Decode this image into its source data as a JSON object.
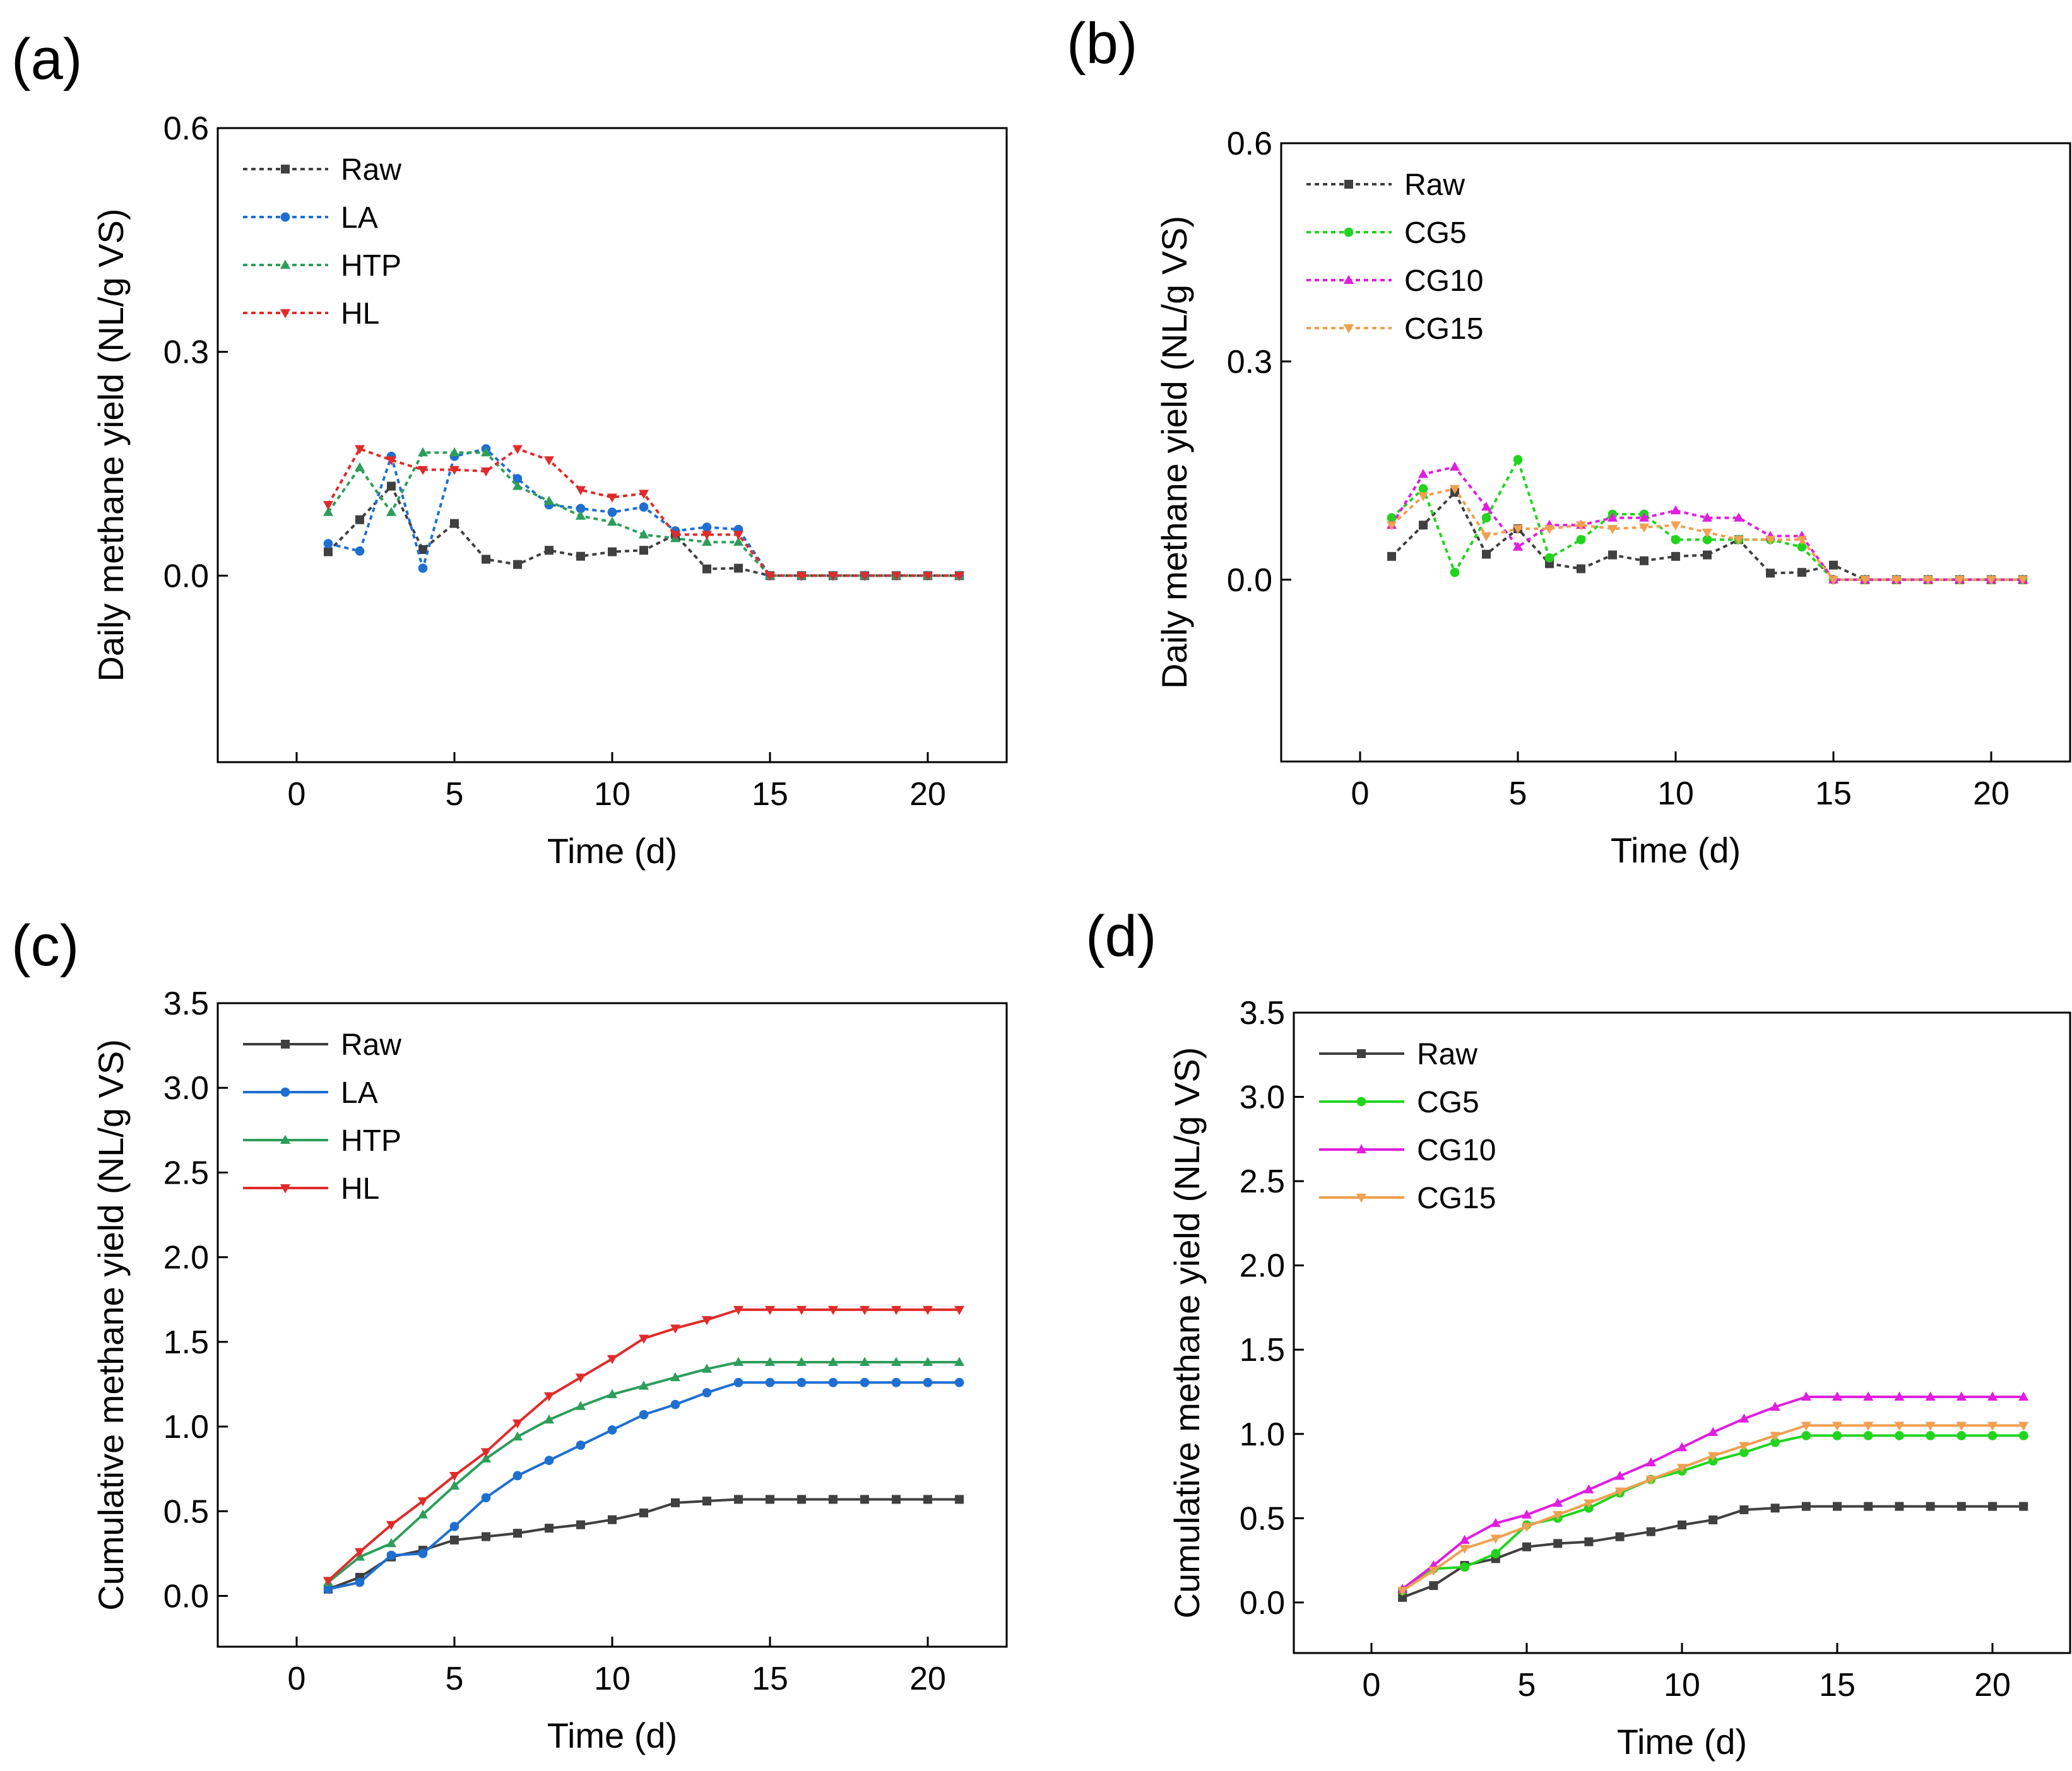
{
  "figure": {
    "panels": [
      "(a)",
      "(b)",
      "(c)",
      "(d)"
    ]
  },
  "chart_data": [
    {
      "panel": "(a)",
      "type": "line",
      "title": "",
      "xlabel": "Time (d)",
      "ylabel": "Daily methane yield (NL/g VS)",
      "xlim": [
        -2.5,
        22.5
      ],
      "ylim": [
        -0.25,
        0.6
      ],
      "xticks": [
        0,
        5,
        10,
        15,
        20
      ],
      "xtick_labels": [
        "0",
        "5",
        "10",
        "15",
        "20"
      ],
      "yticks": [
        0.0,
        0.3,
        0.6
      ],
      "ytick_labels": [
        "0.0",
        "0.3",
        "0.6"
      ],
      "legend_position": "top-left",
      "line_style": "dotted",
      "x": [
        1,
        2,
        3,
        4,
        5,
        6,
        7,
        8,
        9,
        10,
        11,
        12,
        13,
        14,
        15,
        16,
        17,
        18,
        19,
        20,
        21
      ],
      "series": [
        {
          "name": "Raw",
          "color": "#404040",
          "marker": "square",
          "values": [
            0.032,
            0.075,
            0.12,
            0.035,
            0.07,
            0.022,
            0.015,
            0.034,
            0.026,
            0.032,
            0.034,
            0.055,
            0.009,
            0.01,
            0,
            0,
            0,
            0,
            0,
            0,
            0
          ]
        },
        {
          "name": "LA",
          "color": "#1f6fd1",
          "marker": "circle",
          "values": [
            0.043,
            0.033,
            0.16,
            0.01,
            0.16,
            0.17,
            0.13,
            0.095,
            0.09,
            0.085,
            0.092,
            0.06,
            0.065,
            0.062,
            0,
            0,
            0,
            0,
            0,
            0,
            0
          ]
        },
        {
          "name": "HTP",
          "color": "#2e9e5b",
          "marker": "triangle-up",
          "values": [
            0.085,
            0.145,
            0.085,
            0.165,
            0.165,
            0.165,
            0.12,
            0.1,
            0.08,
            0.072,
            0.055,
            0.05,
            0.045,
            0.045,
            0,
            0,
            0,
            0,
            0,
            0,
            0
          ]
        },
        {
          "name": "HL",
          "color": "#e02b2b",
          "marker": "triangle-down",
          "values": [
            0.095,
            0.17,
            0.155,
            0.142,
            0.142,
            0.14,
            0.17,
            0.155,
            0.115,
            0.105,
            0.11,
            0.055,
            0.055,
            0.055,
            0,
            0,
            0,
            0,
            0,
            0,
            0
          ]
        }
      ]
    },
    {
      "panel": "(b)",
      "type": "line",
      "title": "",
      "xlabel": "Time (d)",
      "ylabel": "Daily methane yield (NL/g VS)",
      "xlim": [
        -2.5,
        22.5
      ],
      "ylim": [
        -0.25,
        0.6
      ],
      "xticks": [
        0,
        5,
        10,
        15,
        20
      ],
      "xtick_labels": [
        "0",
        "5",
        "10",
        "15",
        "20"
      ],
      "yticks": [
        0.0,
        0.3,
        0.6
      ],
      "ytick_labels": [
        "0.0",
        "0.3",
        "0.6"
      ],
      "legend_position": "top-left",
      "line_style": "dotted",
      "x": [
        1,
        2,
        3,
        4,
        5,
        6,
        7,
        8,
        9,
        10,
        11,
        12,
        13,
        14,
        15,
        16,
        17,
        18,
        19,
        20,
        21
      ],
      "series": [
        {
          "name": "Raw",
          "color": "#404040",
          "marker": "square",
          "values": [
            0.032,
            0.075,
            0.12,
            0.035,
            0.07,
            0.022,
            0.015,
            0.034,
            0.026,
            0.032,
            0.034,
            0.055,
            0.009,
            0.01,
            0.02,
            0,
            0,
            0,
            0,
            0,
            0
          ]
        },
        {
          "name": "CG5",
          "color": "#22d41e",
          "marker": "circle",
          "values": [
            0.085,
            0.125,
            0.01,
            0.085,
            0.165,
            0.03,
            0.055,
            0.09,
            0.09,
            0.055,
            0.055,
            0.055,
            0.055,
            0.045,
            0,
            0,
            0,
            0,
            0,
            0,
            0
          ]
        },
        {
          "name": "CG10",
          "color": "#e01ee0",
          "marker": "triangle-up",
          "values": [
            0.075,
            0.145,
            0.155,
            0.1,
            0.045,
            0.075,
            0.075,
            0.085,
            0.085,
            0.095,
            0.085,
            0.085,
            0.06,
            0.06,
            0,
            0,
            0,
            0,
            0,
            0,
            0
          ]
        },
        {
          "name": "CG15",
          "color": "#f0a050",
          "marker": "triangle-down",
          "values": [
            0.075,
            0.115,
            0.125,
            0.06,
            0.07,
            0.07,
            0.075,
            0.07,
            0.072,
            0.075,
            0.065,
            0.055,
            0.055,
            0.055,
            0,
            0,
            0,
            0,
            0,
            0,
            0
          ]
        }
      ]
    },
    {
      "panel": "(c)",
      "type": "line",
      "title": "",
      "xlabel": "Time (d)",
      "ylabel": "Cumulative methane yield (NL/g VS)",
      "xlim": [
        -2.5,
        22.5
      ],
      "ylim": [
        -0.3,
        3.5
      ],
      "xticks": [
        0,
        5,
        10,
        15,
        20
      ],
      "xtick_labels": [
        "0",
        "5",
        "10",
        "15",
        "20"
      ],
      "yticks": [
        0.0,
        0.5,
        1.0,
        1.5,
        2.0,
        2.5,
        3.0,
        3.5
      ],
      "ytick_labels": [
        "0.0",
        "0.5",
        "1.0",
        "1.5",
        "2.0",
        "2.5",
        "3.0",
        "3.5"
      ],
      "legend_position": "top-left",
      "line_style": "solid",
      "x": [
        1,
        2,
        3,
        4,
        5,
        6,
        7,
        8,
        9,
        10,
        11,
        12,
        13,
        14,
        15,
        16,
        17,
        18,
        19,
        20,
        21
      ],
      "series": [
        {
          "name": "Raw",
          "color": "#404040",
          "marker": "square",
          "values": [
            0.04,
            0.11,
            0.23,
            0.27,
            0.33,
            0.35,
            0.37,
            0.4,
            0.42,
            0.45,
            0.49,
            0.55,
            0.56,
            0.57,
            0.57,
            0.57,
            0.57,
            0.57,
            0.57,
            0.57,
            0.57
          ]
        },
        {
          "name": "LA",
          "color": "#1f6fd1",
          "marker": "circle",
          "values": [
            0.04,
            0.08,
            0.24,
            0.25,
            0.41,
            0.58,
            0.71,
            0.8,
            0.89,
            0.98,
            1.07,
            1.13,
            1.2,
            1.26,
            1.26,
            1.26,
            1.26,
            1.26,
            1.26,
            1.26,
            1.26
          ]
        },
        {
          "name": "HTP",
          "color": "#2e9e5b",
          "marker": "triangle-up",
          "values": [
            0.08,
            0.23,
            0.31,
            0.48,
            0.65,
            0.81,
            0.94,
            1.04,
            1.12,
            1.19,
            1.24,
            1.29,
            1.34,
            1.38,
            1.38,
            1.38,
            1.38,
            1.38,
            1.38,
            1.38,
            1.38
          ]
        },
        {
          "name": "HL",
          "color": "#e02b2b",
          "marker": "triangle-down",
          "values": [
            0.09,
            0.26,
            0.42,
            0.56,
            0.71,
            0.85,
            1.02,
            1.18,
            1.29,
            1.4,
            1.52,
            1.58,
            1.63,
            1.69,
            1.69,
            1.69,
            1.69,
            1.69,
            1.69,
            1.69,
            1.69
          ]
        }
      ]
    },
    {
      "panel": "(d)",
      "type": "line",
      "title": "",
      "xlabel": "Time (d)",
      "ylabel": "Cumulative methane yield (NL/g VS)",
      "xlim": [
        -2.5,
        22.5
      ],
      "ylim": [
        -0.3,
        3.5
      ],
      "xticks": [
        0,
        5,
        10,
        15,
        20
      ],
      "xtick_labels": [
        "0",
        "5",
        "10",
        "15",
        "20"
      ],
      "yticks": [
        0.0,
        0.5,
        1.0,
        1.5,
        2.0,
        2.5,
        3.0,
        3.5
      ],
      "ytick_labels": [
        "0.0",
        "0.5",
        "1.0",
        "1.5",
        "2.0",
        "2.5",
        "3.0",
        "3.5"
      ],
      "legend_position": "top-left",
      "line_style": "solid",
      "x": [
        1,
        2,
        3,
        4,
        5,
        6,
        7,
        8,
        9,
        10,
        11,
        12,
        13,
        14,
        15,
        16,
        17,
        18,
        19,
        20,
        21
      ],
      "series": [
        {
          "name": "Raw",
          "color": "#404040",
          "marker": "square",
          "values": [
            0.03,
            0.1,
            0.22,
            0.26,
            0.33,
            0.35,
            0.36,
            0.39,
            0.42,
            0.46,
            0.49,
            0.55,
            0.56,
            0.57,
            0.57,
            0.57,
            0.57,
            0.57,
            0.57,
            0.57,
            0.57
          ]
        },
        {
          "name": "CG5",
          "color": "#22d41e",
          "marker": "circle",
          "values": [
            0.07,
            0.2,
            0.21,
            0.29,
            0.46,
            0.5,
            0.56,
            0.65,
            0.73,
            0.78,
            0.84,
            0.89,
            0.95,
            0.99,
            0.99,
            0.99,
            0.99,
            0.99,
            0.99,
            0.99,
            0.99
          ]
        },
        {
          "name": "CG10",
          "color": "#e01ee0",
          "marker": "triangle-up",
          "values": [
            0.08,
            0.22,
            0.37,
            0.47,
            0.52,
            0.59,
            0.67,
            0.75,
            0.83,
            0.92,
            1.01,
            1.09,
            1.16,
            1.22,
            1.22,
            1.22,
            1.22,
            1.22,
            1.22,
            1.22,
            1.22
          ]
        },
        {
          "name": "CG15",
          "color": "#f0a050",
          "marker": "triangle-down",
          "values": [
            0.07,
            0.19,
            0.32,
            0.38,
            0.45,
            0.52,
            0.59,
            0.66,
            0.73,
            0.8,
            0.87,
            0.93,
            0.99,
            1.05,
            1.05,
            1.05,
            1.05,
            1.05,
            1.05,
            1.05,
            1.05
          ]
        }
      ]
    }
  ]
}
